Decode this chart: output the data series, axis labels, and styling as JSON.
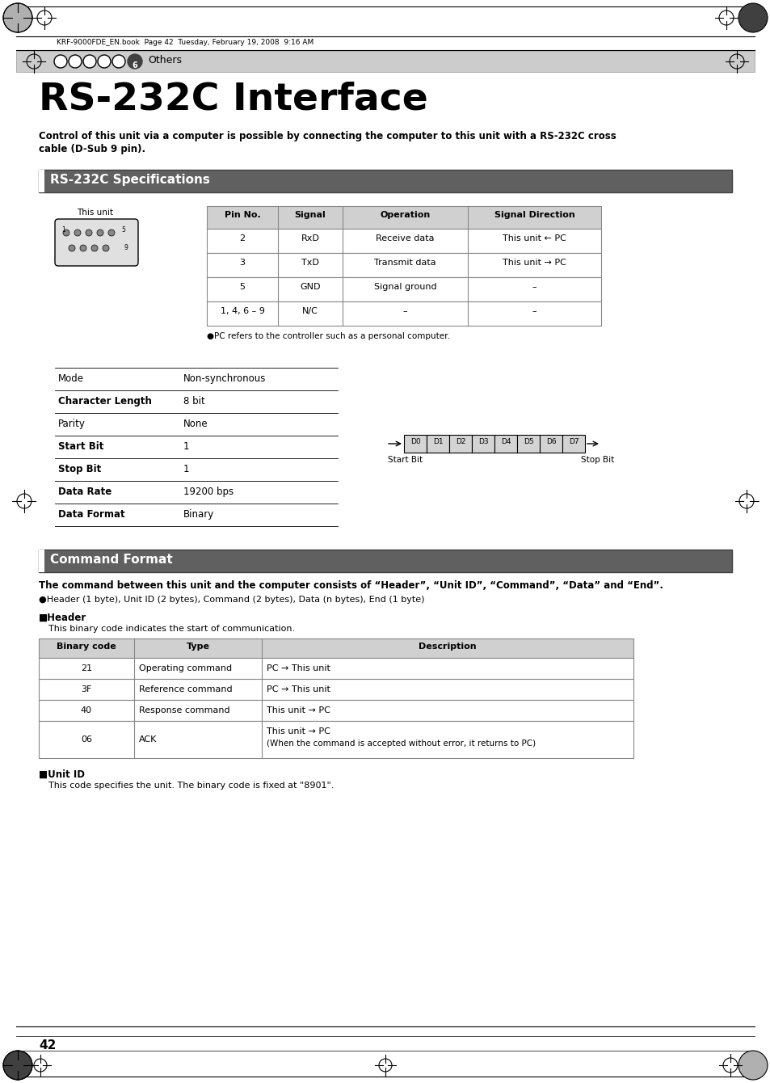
{
  "page_num": "42",
  "header_text": "KRF-9000FDE_EN.book  Page 42  Tuesday, February 19, 2008  9:16 AM",
  "section_label": "Others",
  "main_title": "RS-232C Interface",
  "intro_text": "Control of this unit via a computer is possible by connecting the computer to this unit with a RS-232C cross\ncable (D-Sub 9 pin).",
  "section1_title": "RS-232C Specifications",
  "table1_headers": [
    "Pin No.",
    "Signal",
    "Operation",
    "Signal Direction"
  ],
  "table1_rows": [
    [
      "2",
      "RxD",
      "Receive data",
      "This unit ← PC"
    ],
    [
      "3",
      "TxD",
      "Transmit data",
      "This unit → PC"
    ],
    [
      "5",
      "GND",
      "Signal ground",
      "–"
    ],
    [
      "1, 4, 6 – 9",
      "N/C",
      "–",
      "–"
    ]
  ],
  "pc_note": "●PC refers to the controller such as a personal computer.",
  "specs_rows": [
    [
      "Mode",
      "Non-synchronous"
    ],
    [
      "Character Length",
      "8 bit"
    ],
    [
      "Parity",
      "None"
    ],
    [
      "Start Bit",
      "1"
    ],
    [
      "Stop Bit",
      "1"
    ],
    [
      "Data Rate",
      "19200 bps"
    ],
    [
      "Data Format",
      "Binary"
    ]
  ],
  "data_bits": [
    "D0",
    "D1",
    "D2",
    "D3",
    "D4",
    "D5",
    "D6",
    "D7"
  ],
  "start_bit_label": "Start Bit",
  "stop_bit_label": "Stop Bit",
  "section2_title": "Command Format",
  "cmd_intro": "The command between this unit and the computer consists of “Header”, “Unit ID”, “Command”, “Data” and “End”.",
  "cmd_note": "●Header (1 byte), Unit ID (2 bytes), Command (2 bytes), Data (n bytes), End (1 byte)",
  "header_section_title": "■Header",
  "header_section_desc": "This binary code indicates the start of communication.",
  "table2_headers": [
    "Binary code",
    "Type",
    "Description"
  ],
  "table2_rows": [
    [
      "21",
      "Operating command",
      "PC → This unit"
    ],
    [
      "3F",
      "Reference command",
      "PC → This unit"
    ],
    [
      "40",
      "Response command",
      "This unit → PC"
    ],
    [
      "06",
      "ACK",
      "This unit → PC\n(When the command is accepted without error, it returns to PC)"
    ]
  ],
  "unit_id_title": "■Unit ID",
  "unit_id_desc": "This code specifies the unit. The binary code is fixed at \"8901\".",
  "bg_color": "#ffffff",
  "section_header_bg": "#606060",
  "section_header_text_color": "#ffffff",
  "table_header_bg": "#d0d0d0",
  "table_border_color": "#888888",
  "nav_bar_bg": "#cccccc"
}
